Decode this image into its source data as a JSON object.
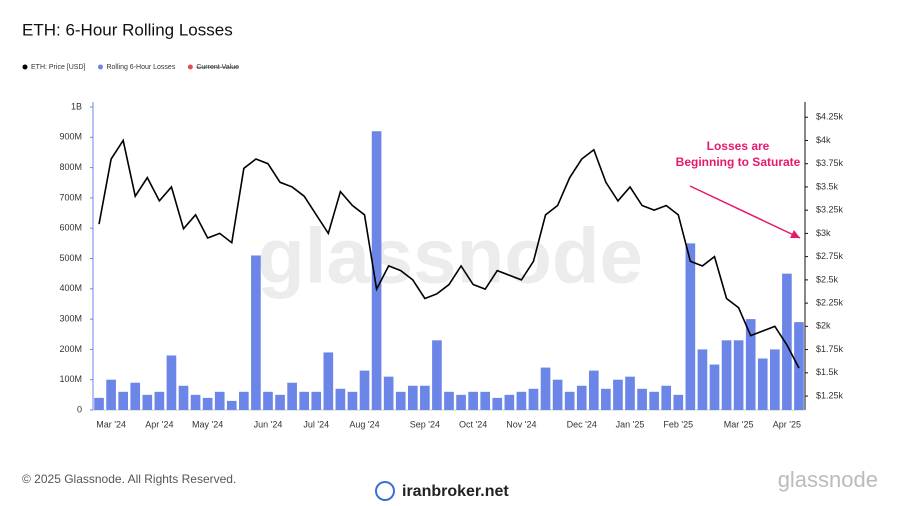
{
  "chart_data": {
    "type": "bar-line",
    "title": "ETH: 6-Hour Rolling Losses",
    "annotation": "Losses are Beginning to Saturate",
    "watermark": "glassnode",
    "footer": {
      "copyright": "© 2025 Glassnode. All Rights Reserved.",
      "source": "iranbroker.net",
      "brand": "glassnode"
    },
    "categories": [
      null,
      "Mar '24",
      null,
      null,
      null,
      "Apr '24",
      null,
      null,
      null,
      "May '24",
      null,
      null,
      null,
      null,
      "Jun '24",
      null,
      null,
      null,
      "Jul '24",
      null,
      null,
      null,
      "Aug '24",
      null,
      null,
      null,
      null,
      "Sep '24",
      null,
      null,
      null,
      "Oct '24",
      null,
      null,
      null,
      "Nov '24",
      null,
      null,
      null,
      null,
      "Dec '24",
      null,
      null,
      null,
      "Jan '25",
      null,
      null,
      null,
      "Feb '25",
      null,
      null,
      null,
      null,
      "Mar '25",
      null,
      null,
      null,
      "Apr '25",
      null
    ],
    "series": [
      {
        "name": "ETH: Price [USD]",
        "color": "#000000",
        "axis": "y2",
        "kind": "line",
        "values": [
          3100,
          3800,
          4000,
          3400,
          3600,
          3350,
          3500,
          3050,
          3200,
          2950,
          3000,
          2900,
          3700,
          3800,
          3750,
          3550,
          3500,
          3400,
          3200,
          3000,
          3450,
          3300,
          3200,
          2400,
          2650,
          2600,
          2500,
          2300,
          2350,
          2450,
          2650,
          2450,
          2400,
          2600,
          2550,
          2500,
          2700,
          3200,
          3300,
          3600,
          3800,
          3900,
          3550,
          3350,
          3500,
          3300,
          3250,
          3300,
          3200,
          2700,
          2650,
          2750,
          2300,
          2200,
          1900,
          1950,
          2000,
          1800,
          1550
        ]
      },
      {
        "name": "Rolling 6-Hour Losses",
        "color": "#6b86e6",
        "kind": "bar",
        "values": [
          40000000,
          100000000,
          60000000,
          90000000,
          50000000,
          60000000,
          180000000,
          80000000,
          50000000,
          40000000,
          60000000,
          30000000,
          60000000,
          510000000,
          60000000,
          50000000,
          90000000,
          60000000,
          60000000,
          190000000,
          70000000,
          60000000,
          130000000,
          920000000,
          110000000,
          60000000,
          80000000,
          80000000,
          230000000,
          60000000,
          50000000,
          60000000,
          60000000,
          40000000,
          50000000,
          60000000,
          70000000,
          140000000,
          100000000,
          60000000,
          80000000,
          130000000,
          70000000,
          100000000,
          110000000,
          70000000,
          60000000,
          80000000,
          50000000,
          550000000,
          200000000,
          150000000,
          230000000,
          230000000,
          300000000,
          170000000,
          200000000,
          450000000,
          290000000
        ]
      },
      {
        "name": "Current Value",
        "color": "#e05050",
        "visible": false
      }
    ],
    "ylim": [
      0,
      1000000000
    ],
    "yticks": [
      0,
      {
        "value": 100000000,
        "label": "100M"
      },
      {
        "value": 200000000,
        "label": "200M"
      },
      {
        "value": 300000000,
        "label": "300M"
      },
      {
        "value": 400000000,
        "label": "400M"
      },
      {
        "value": 500000000,
        "label": "500M"
      },
      {
        "value": 600000000,
        "label": "600M"
      },
      {
        "value": 700000000,
        "label": "700M"
      },
      {
        "value": 800000000,
        "label": "800M"
      },
      {
        "value": 900000000,
        "label": "900M"
      },
      {
        "value": 1000000000,
        "label": "1B"
      }
    ],
    "y2lim": [
      1100,
      4360
    ],
    "y2ticks": [
      {
        "value": 1250,
        "label": "$1.25k"
      },
      {
        "value": 1500,
        "label": "$1.5k"
      },
      {
        "value": 1750,
        "label": "$1.75k"
      },
      {
        "value": 2000,
        "label": "$2k"
      },
      {
        "value": 2250,
        "label": "$2.25k"
      },
      {
        "value": 2500,
        "label": "$2.5k"
      },
      {
        "value": 2750,
        "label": "$2.75k"
      },
      {
        "value": 3000,
        "label": "$3k"
      },
      {
        "value": 3250,
        "label": "$3.25k"
      },
      {
        "value": 3500,
        "label": "$3.5k"
      },
      {
        "value": 3750,
        "label": "$3.75k"
      },
      {
        "value": 4000,
        "label": "$4k"
      },
      {
        "value": 4250,
        "label": "$4.25k"
      }
    ],
    "grid": false
  }
}
